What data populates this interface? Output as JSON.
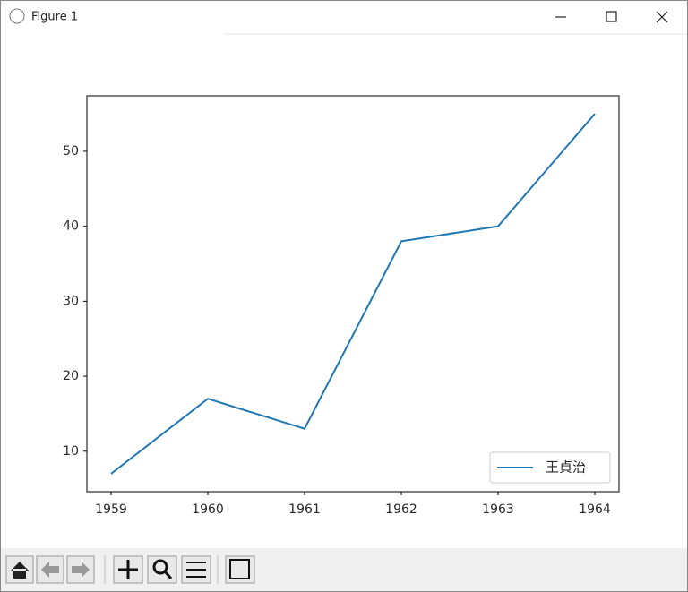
{
  "window": {
    "title": "Figure 1"
  },
  "chart_data": {
    "type": "line",
    "x": [
      1959,
      1960,
      1961,
      1962,
      1963,
      1964
    ],
    "series": [
      {
        "name": "王貞治",
        "color": "#1f77b4",
        "values": [
          7,
          17,
          13,
          38,
          40,
          55
        ]
      }
    ],
    "xlim": [
      1958.75,
      1964.25
    ],
    "xticks": [
      1959,
      1960,
      1961,
      1962,
      1963,
      1964
    ],
    "ylim": [
      4.6,
      57.4
    ],
    "yticks": [
      10,
      20,
      30,
      40,
      50
    ],
    "grid": false,
    "legend": "lower right"
  }
}
